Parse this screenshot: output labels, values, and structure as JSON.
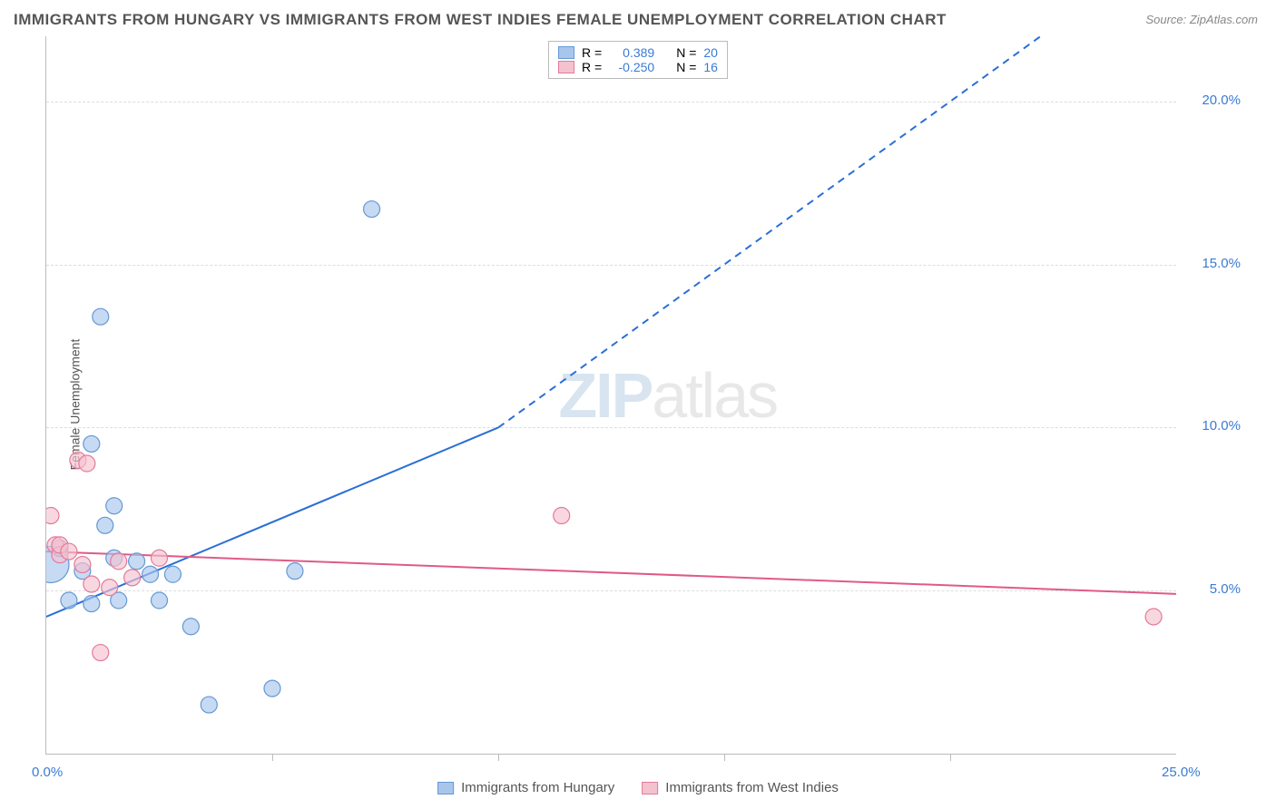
{
  "title": "IMMIGRANTS FROM HUNGARY VS IMMIGRANTS FROM WEST INDIES FEMALE UNEMPLOYMENT CORRELATION CHART",
  "source": "Source: ZipAtlas.com",
  "ylabel": "Female Unemployment",
  "watermark_a": "ZIP",
  "watermark_b": "atlas",
  "chart": {
    "type": "scatter_with_regression",
    "background_color": "#ffffff",
    "grid_color": "#dddddd",
    "axis_color": "#bbbbbb",
    "xlim": [
      0,
      25
    ],
    "ylim": [
      0,
      22
    ],
    "x_ticks": [
      0,
      5,
      10,
      15,
      20,
      25
    ],
    "y_ticks": [
      5,
      10,
      15,
      20
    ],
    "x_tick_labels": [
      "0.0%",
      "",
      "",
      "",
      "",
      "25.0%"
    ],
    "y_tick_labels": [
      "5.0%",
      "10.0%",
      "15.0%",
      "20.0%"
    ],
    "tick_label_color": "#3a7bd5",
    "tick_label_fontsize": 15,
    "marker_radius": 9,
    "marker_stroke_width": 1.2,
    "series": [
      {
        "name": "Immigrants from Hungary",
        "color_fill": "#a8c6ec",
        "color_stroke": "#6598d4",
        "r_value": "0.389",
        "n_value": "20",
        "regression": {
          "x1": 0,
          "y1": 4.2,
          "x2": 10,
          "y2": 10.0,
          "dashed_to_x": 22,
          "dashed_to_y": 22,
          "color": "#2a6fd6",
          "width": 2
        },
        "points": [
          {
            "x": 0.1,
            "y": 5.8,
            "r": 20
          },
          {
            "x": 0.3,
            "y": 6.3
          },
          {
            "x": 0.5,
            "y": 4.7
          },
          {
            "x": 0.8,
            "y": 5.6
          },
          {
            "x": 1.0,
            "y": 4.6
          },
          {
            "x": 1.0,
            "y": 9.5
          },
          {
            "x": 1.2,
            "y": 13.4
          },
          {
            "x": 1.3,
            "y": 7.0
          },
          {
            "x": 1.5,
            "y": 6.0
          },
          {
            "x": 1.5,
            "y": 7.6
          },
          {
            "x": 1.6,
            "y": 4.7
          },
          {
            "x": 2.0,
            "y": 5.9
          },
          {
            "x": 2.3,
            "y": 5.5
          },
          {
            "x": 2.5,
            "y": 4.7
          },
          {
            "x": 2.8,
            "y": 5.5
          },
          {
            "x": 3.2,
            "y": 3.9
          },
          {
            "x": 3.6,
            "y": 1.5
          },
          {
            "x": 5.0,
            "y": 2.0
          },
          {
            "x": 5.5,
            "y": 5.6
          },
          {
            "x": 7.2,
            "y": 16.7
          }
        ]
      },
      {
        "name": "Immigrants from West Indies",
        "color_fill": "#f4c2cf",
        "color_stroke": "#e47a9a",
        "r_value": "-0.250",
        "n_value": "16",
        "regression": {
          "x1": 0,
          "y1": 6.2,
          "x2": 25,
          "y2": 4.9,
          "color": "#e05a85",
          "width": 2
        },
        "points": [
          {
            "x": 0.1,
            "y": 7.3
          },
          {
            "x": 0.2,
            "y": 6.4
          },
          {
            "x": 0.3,
            "y": 6.1
          },
          {
            "x": 0.3,
            "y": 6.4
          },
          {
            "x": 0.5,
            "y": 6.2
          },
          {
            "x": 0.7,
            "y": 9.0
          },
          {
            "x": 0.8,
            "y": 5.8
          },
          {
            "x": 0.9,
            "y": 8.9
          },
          {
            "x": 1.0,
            "y": 5.2
          },
          {
            "x": 1.2,
            "y": 3.1
          },
          {
            "x": 1.4,
            "y": 5.1
          },
          {
            "x": 1.6,
            "y": 5.9
          },
          {
            "x": 1.9,
            "y": 5.4
          },
          {
            "x": 2.5,
            "y": 6.0
          },
          {
            "x": 11.4,
            "y": 7.3
          },
          {
            "x": 24.5,
            "y": 4.2
          }
        ]
      }
    ]
  },
  "legend_top": {
    "r_label": "R =",
    "n_label": "N ="
  },
  "legend_bottom_labels": [
    "Immigrants from Hungary",
    "Immigrants from West Indies"
  ]
}
